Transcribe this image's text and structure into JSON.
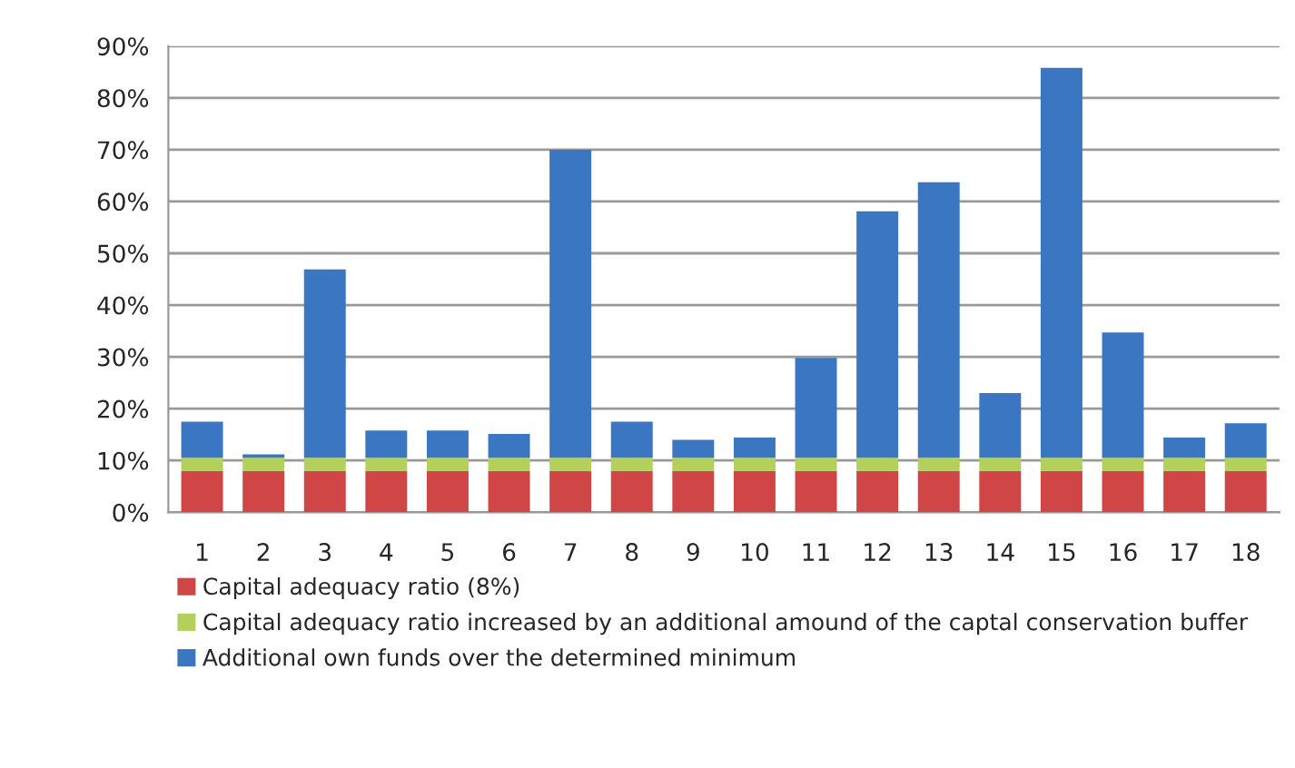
{
  "chart_data": {
    "type": "bar",
    "stacked": true,
    "categories": [
      "1",
      "2",
      "3",
      "4",
      "5",
      "6",
      "7",
      "8",
      "9",
      "10",
      "11",
      "12",
      "13",
      "14",
      "15",
      "16",
      "17",
      "18"
    ],
    "series": [
      {
        "name": "Capital adequacy ratio (8%)",
        "color": "#d04545",
        "values": [
          8,
          8,
          8,
          8,
          8,
          8,
          8,
          8,
          8,
          8,
          8,
          8,
          8,
          8,
          8,
          8,
          8,
          8
        ]
      },
      {
        "name": "Capital adequacy ratio increased by an additional amound of the captal conservation buffer",
        "color": "#b3d05a",
        "values": [
          2.5,
          2.5,
          2.5,
          2.5,
          2.5,
          2.5,
          2.5,
          2.5,
          2.5,
          2.5,
          2.5,
          2.5,
          2.5,
          2.5,
          2.5,
          2.5,
          2.5,
          2.5
        ]
      },
      {
        "name": "Additional own funds over the determined minimum",
        "color": "#3b76c2",
        "values": [
          7,
          0.7,
          36.4,
          5.3,
          5.3,
          4.6,
          59.5,
          7,
          3.5,
          3.9,
          19.3,
          47.6,
          53.2,
          12.5,
          75.3,
          24.2,
          3.9,
          6.7
        ]
      }
    ],
    "ylim": [
      0,
      90
    ],
    "yticks": [
      {
        "value": 0,
        "label": "0%"
      },
      {
        "value": 10,
        "label": "10%"
      },
      {
        "value": 20,
        "label": "20%"
      },
      {
        "value": 30,
        "label": "30%"
      },
      {
        "value": 40,
        "label": "40%"
      },
      {
        "value": 50,
        "label": "50%"
      },
      {
        "value": 60,
        "label": "60%"
      },
      {
        "value": 70,
        "label": "70%"
      },
      {
        "value": 80,
        "label": "80%"
      },
      {
        "value": 90,
        "label": "90%"
      }
    ],
    "grid": "y",
    "legend": "bottom"
  }
}
